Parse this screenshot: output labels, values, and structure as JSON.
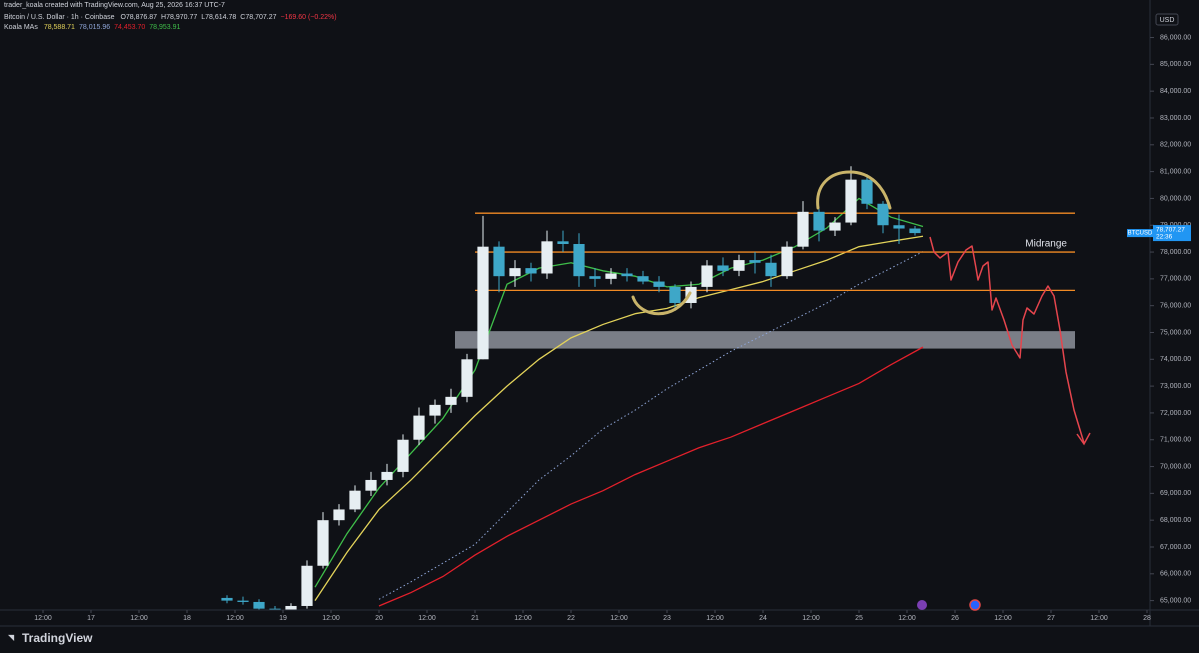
{
  "header": {
    "credit": "trader_koala created with TradingView.com, Aug 25, 2026 16:37 UTC-7",
    "symbol": "Bitcoin / U.S. Dollar · 1h · Coinbase",
    "ohlc": [
      "O78,876.87",
      "H78,970.77",
      "L78,614.78",
      "C78,707.27",
      "−169.60 (−0.22%)"
    ]
  },
  "footer": {
    "brand": "TradingView"
  },
  "price_axis": {
    "currency": "USD",
    "tag_symbol": "BTCUSD",
    "tag_price": "78,707.27",
    "tag_countdown": "22:36",
    "tag_value": 78707.27,
    "tag_color": "#2196f3"
  },
  "chart_data": {
    "type": "candlestick",
    "up_color": "#e6eef2",
    "down_color": "#3ea7c8",
    "xlim": [
      -22.75,
      264.25
    ],
    "ylim": [
      64650,
      87400
    ],
    "xticks": [
      {
        "value": -12,
        "label": "12:00"
      },
      {
        "value": 0,
        "label": "17"
      },
      {
        "value": 12,
        "label": "12:00"
      },
      {
        "value": 24,
        "label": "18"
      },
      {
        "value": 36,
        "label": "12:00"
      },
      {
        "value": 48,
        "label": "19"
      },
      {
        "value": 60,
        "label": "12:00"
      },
      {
        "value": 72,
        "label": "20"
      },
      {
        "value": 84,
        "label": "12:00"
      },
      {
        "value": 96,
        "label": "21"
      },
      {
        "value": 108,
        "label": "12:00"
      },
      {
        "value": 120,
        "label": "22"
      },
      {
        "value": 132,
        "label": "12:00"
      },
      {
        "value": 144,
        "label": "23"
      },
      {
        "value": 156,
        "label": "12:00"
      },
      {
        "value": 168,
        "label": "24"
      },
      {
        "value": 180,
        "label": "12:00"
      },
      {
        "value": 192,
        "label": "25"
      },
      {
        "value": 204,
        "label": "12:00"
      },
      {
        "value": 216,
        "label": "26"
      },
      {
        "value": 228,
        "label": "12:00"
      },
      {
        "value": 240,
        "label": "27"
      },
      {
        "value": 252,
        "label": "12:00"
      },
      {
        "value": 264,
        "label": "28"
      }
    ],
    "yticks": [
      {
        "value": 65000,
        "label": "65,000.00"
      },
      {
        "value": 66000,
        "label": "66,000.00"
      },
      {
        "value": 67000,
        "label": "67,000.00"
      },
      {
        "value": 68000,
        "label": "68,000.00"
      },
      {
        "value": 69000,
        "label": "69,000.00"
      },
      {
        "value": 70000,
        "label": "70,000.00"
      },
      {
        "value": 71000,
        "label": "71,000.00"
      },
      {
        "value": 72000,
        "label": "72,000.00"
      },
      {
        "value": 73000,
        "label": "73,000.00"
      },
      {
        "value": 74000,
        "label": "74,000.00"
      },
      {
        "value": 75000,
        "label": "75,000.00"
      },
      {
        "value": 76000,
        "label": "76,000.00"
      },
      {
        "value": 77000,
        "label": "77,000.00"
      },
      {
        "value": 78000,
        "label": "78,000.00"
      },
      {
        "value": 79000,
        "label": "79,000.00"
      },
      {
        "value": 80000,
        "label": "80,000.00"
      },
      {
        "value": 81000,
        "label": "81,000.00"
      },
      {
        "value": 82000,
        "label": "82,000.00"
      },
      {
        "value": 83000,
        "label": "83,000.00"
      },
      {
        "value": 84000,
        "label": "84,000.00"
      },
      {
        "value": 85000,
        "label": "85,000.00"
      },
      {
        "value": 86000,
        "label": "86,000.00"
      }
    ],
    "candles": {
      "x": [
        32,
        36,
        40,
        44,
        48,
        52,
        56,
        60,
        64,
        68,
        72,
        76,
        80,
        84,
        88,
        92,
        96,
        100,
        104,
        108,
        112,
        116,
        120,
        124,
        128,
        132,
        136,
        140,
        144,
        148,
        152,
        156,
        160,
        164,
        168,
        172,
        176,
        180,
        184,
        188,
        192,
        196,
        200,
        204
      ],
      "open": [
        65100,
        65000,
        64950,
        64700,
        64400,
        64800,
        66300,
        68000,
        68400,
        69100,
        69500,
        69800,
        71000,
        71900,
        72300,
        72600,
        74000,
        78200,
        77100,
        77400,
        77200,
        78400,
        78300,
        77100,
        77000,
        77200,
        77100,
        76900,
        76700,
        76100,
        76700,
        77500,
        77300,
        77700,
        77600,
        77100,
        78200,
        79500,
        78800,
        79100,
        80700,
        79800,
        79000,
        78876.87
      ],
      "high": [
        65200,
        65150,
        65050,
        64800,
        64900,
        66500,
        68300,
        68600,
        69300,
        69800,
        70100,
        71200,
        72200,
        72500,
        72900,
        74200,
        79350,
        78400,
        77700,
        77600,
        78800,
        78800,
        78700,
        77400,
        77400,
        77400,
        77300,
        77100,
        76800,
        76900,
        77700,
        77800,
        77900,
        78000,
        77900,
        78400,
        79900,
        79600,
        79300,
        81200,
        80900,
        79900,
        79400,
        78970.77
      ],
      "low": [
        64900,
        64850,
        64600,
        64300,
        64300,
        64700,
        66200,
        67800,
        68300,
        68900,
        69300,
        69600,
        70800,
        71600,
        72000,
        72400,
        74000,
        76500,
        76700,
        76900,
        77000,
        78000,
        76700,
        76700,
        76800,
        76900,
        76800,
        76500,
        75800,
        75900,
        76500,
        77100,
        77100,
        77200,
        76700,
        77000,
        78100,
        78400,
        78600,
        79000,
        79600,
        78700,
        78300,
        78614.78
      ],
      "close": [
        65000,
        64950,
        64700,
        64400,
        64800,
        66300,
        68000,
        68400,
        69100,
        69500,
        69800,
        71000,
        71900,
        72300,
        72600,
        74000,
        78200,
        77100,
        77400,
        77200,
        78400,
        78300,
        77100,
        77000,
        77200,
        77100,
        76900,
        76700,
        76100,
        76700,
        77500,
        77300,
        77700,
        77600,
        77100,
        78200,
        79500,
        78800,
        79100,
        80700,
        79800,
        79000,
        78876.87,
        78707.27
      ]
    },
    "moving_averages": {
      "name": "Koala MAs",
      "x": [
        56,
        64,
        72,
        80,
        88,
        96,
        104,
        112,
        120,
        128,
        136,
        144,
        152,
        160,
        168,
        176,
        184,
        192,
        200,
        208
      ],
      "series": [
        {
          "color": "#e3d35a",
          "style": "solid",
          "last_label": "78,588.71",
          "values": [
            65000,
            66800,
            68400,
            69500,
            70700,
            71900,
            73000,
            74000,
            74800,
            75300,
            75700,
            75900,
            76300,
            76600,
            76900,
            77300,
            77700,
            78200,
            78400,
            78588.71
          ]
        },
        {
          "color": "#8fa6d8",
          "style": "dotted",
          "last_label": "78,015.96",
          "values": [
            null,
            null,
            65050,
            65700,
            66400,
            67100,
            68300,
            69500,
            70400,
            71400,
            72100,
            72900,
            73600,
            74300,
            74900,
            75500,
            76100,
            76800,
            77400,
            78015.96
          ]
        },
        {
          "color": "#e3202b",
          "style": "solid",
          "last_label": "74,453.70",
          "values": [
            null,
            null,
            64800,
            65300,
            65900,
            66700,
            67400,
            68000,
            68600,
            69100,
            69700,
            70200,
            70700,
            71100,
            71600,
            72100,
            72600,
            73100,
            73800,
            74453.7
          ]
        },
        {
          "color": "#3fbf4a",
          "style": "solid",
          "last_label": "78,953.91",
          "values": [
            65500,
            67500,
            69200,
            70500,
            71800,
            73600,
            76800,
            77400,
            77600,
            77300,
            77100,
            76700,
            76800,
            77400,
            77700,
            78200,
            78900,
            80000,
            79300,
            78953.91
          ]
        }
      ]
    },
    "levels": {
      "color": "#f08a24",
      "values": [
        79450,
        78000,
        76570
      ],
      "x_range": [
        96,
        246
      ],
      "label": "Midrange"
    },
    "zone": {
      "color": "#9fa3ad",
      "range": [
        74400,
        75050
      ],
      "x_range": [
        91,
        246
      ]
    }
  }
}
